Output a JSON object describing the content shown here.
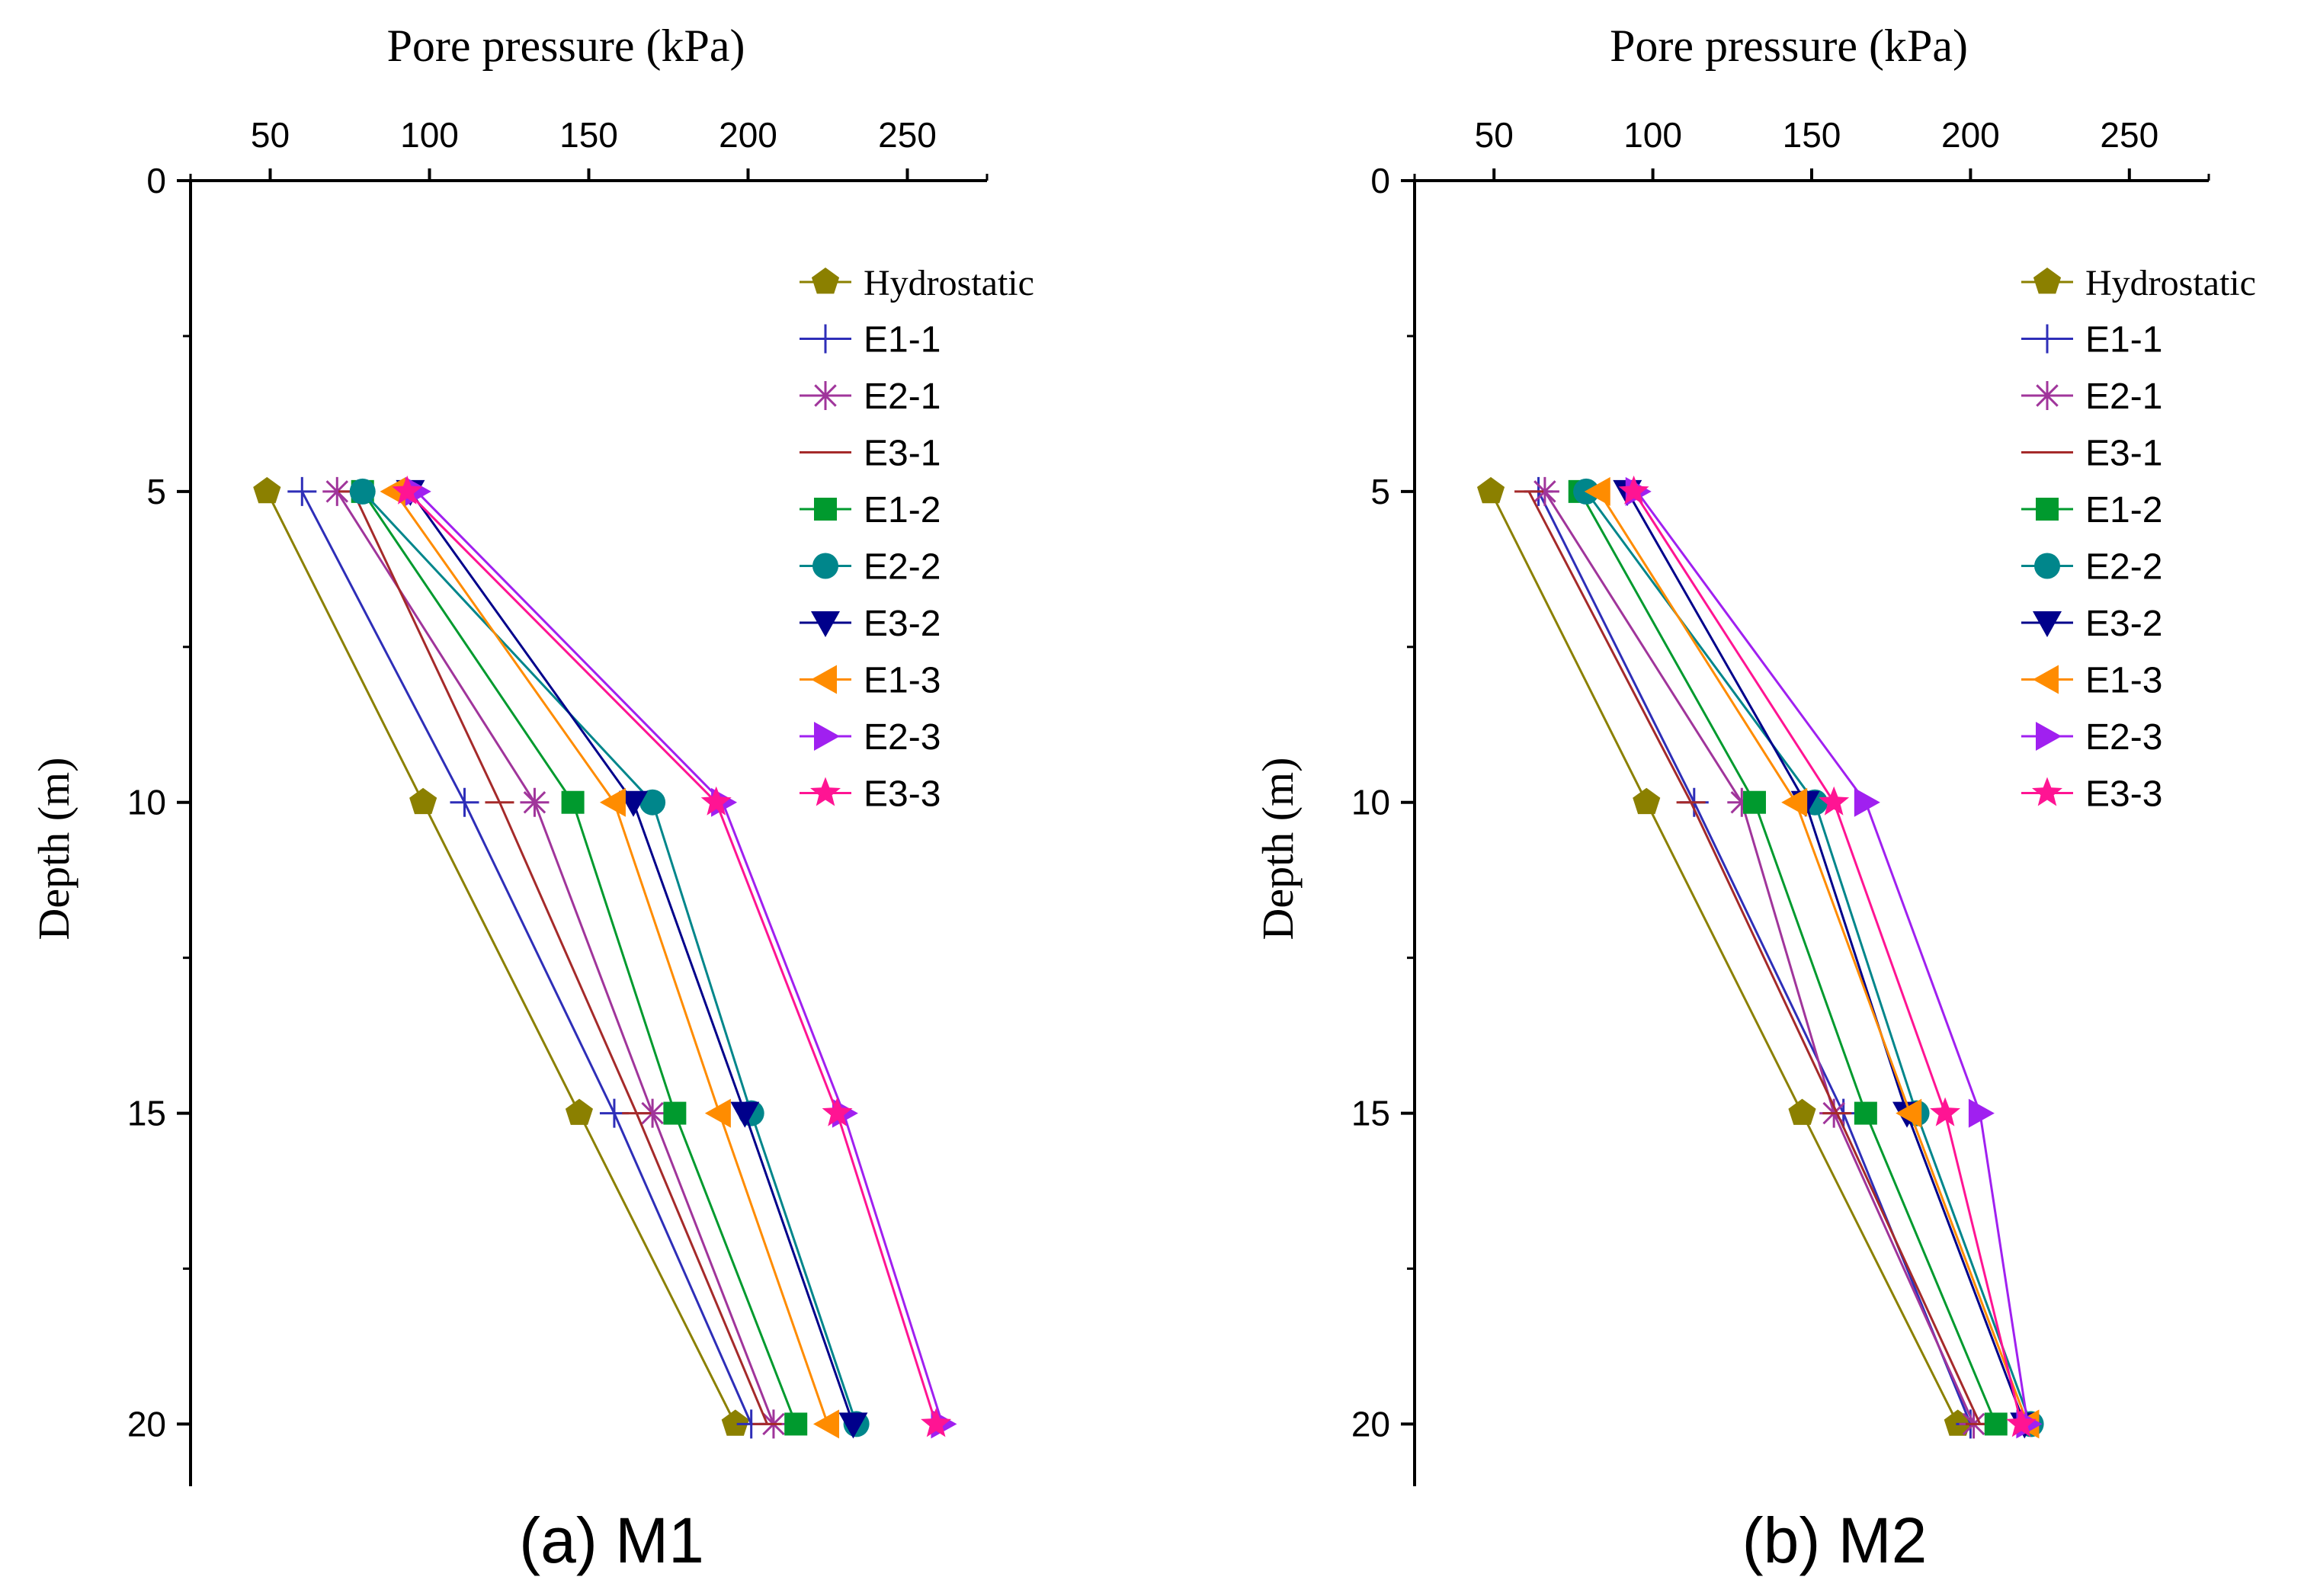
{
  "chart_data": [
    {
      "type": "line",
      "caption": "(a) M1",
      "xlabel": "Pore pressure (kPa)",
      "ylabel": "Depth (m)",
      "xlim": [
        25,
        275
      ],
      "ylim": [
        0,
        21
      ],
      "x_ticks": [
        50,
        100,
        150,
        200,
        250
      ],
      "y_ticks": [
        0,
        5,
        10,
        15,
        20
      ],
      "x_axis_position": "top",
      "y_inverted": true,
      "grid": false,
      "legend_position": "top-right",
      "depths": [
        5,
        10,
        15,
        20
      ],
      "series": [
        {
          "name": "Hydrostatic",
          "values": [
            49,
            98,
            147,
            196
          ]
        },
        {
          "name": "E1-1",
          "values": [
            60,
            111,
            158,
            201
          ]
        },
        {
          "name": "E2-1",
          "values": [
            71,
            133,
            170,
            208
          ]
        },
        {
          "name": "E3-1",
          "values": [
            76,
            122,
            165,
            206
          ]
        },
        {
          "name": "E1-2",
          "values": [
            79,
            145,
            177,
            215
          ]
        },
        {
          "name": "E2-2",
          "values": [
            79,
            170,
            201,
            234
          ]
        },
        {
          "name": "E3-2",
          "values": [
            94,
            164,
            199,
            233
          ]
        },
        {
          "name": "E1-3",
          "values": [
            89,
            158,
            191,
            225
          ]
        },
        {
          "name": "E2-3",
          "values": [
            96,
            192,
            230,
            261
          ]
        },
        {
          "name": "E3-3",
          "values": [
            93,
            190,
            228,
            259
          ]
        }
      ]
    },
    {
      "type": "line",
      "caption": "(b) M2",
      "xlabel": "Pore pressure (kPa)",
      "ylabel": "Depth (m)",
      "xlim": [
        25,
        275
      ],
      "ylim": [
        0,
        21
      ],
      "x_ticks": [
        50,
        100,
        150,
        200,
        250
      ],
      "y_ticks": [
        0,
        5,
        10,
        15,
        20
      ],
      "x_axis_position": "top",
      "y_inverted": true,
      "grid": false,
      "legend_position": "top-right",
      "depths": [
        5,
        10,
        15,
        20
      ],
      "series": [
        {
          "name": "Hydrostatic",
          "values": [
            49,
            98,
            147,
            196
          ]
        },
        {
          "name": "E1-1",
          "values": [
            64,
            113,
            160,
            200
          ]
        },
        {
          "name": "E2-1",
          "values": [
            66,
            128,
            157,
            201
          ]
        },
        {
          "name": "E3-1",
          "values": [
            61,
            112,
            158,
            203
          ]
        },
        {
          "name": "E1-2",
          "values": [
            77,
            132,
            167,
            208
          ]
        },
        {
          "name": "E2-2",
          "values": [
            79,
            151,
            183,
            219
          ]
        },
        {
          "name": "E3-2",
          "values": [
            92,
            148,
            180,
            217
          ]
        },
        {
          "name": "E1-3",
          "values": [
            83,
            145,
            181,
            218
          ]
        },
        {
          "name": "E2-3",
          "values": [
            95,
            167,
            203,
            218
          ]
        },
        {
          "name": "E3-3",
          "values": [
            94,
            157,
            192,
            216
          ]
        }
      ]
    }
  ],
  "series_style": {
    "Hydrostatic": {
      "color": "#8b8000",
      "marker": "pentagon"
    },
    "E1-1": {
      "color": "#2e2eb8",
      "marker": "plus"
    },
    "E2-1": {
      "color": "#a0359b",
      "marker": "asterisk"
    },
    "E3-1": {
      "color": "#a52a2a",
      "marker": "dash"
    },
    "E1-2": {
      "color": "#009a2e",
      "marker": "square"
    },
    "E2-2": {
      "color": "#00868b",
      "marker": "circle"
    },
    "E3-2": {
      "color": "#00008b",
      "marker": "triangle-down"
    },
    "E1-3": {
      "color": "#ff8c00",
      "marker": "triangle-left"
    },
    "E2-3": {
      "color": "#a020f0",
      "marker": "triangle-right"
    },
    "E3-3": {
      "color": "#ff1493",
      "marker": "star"
    }
  }
}
